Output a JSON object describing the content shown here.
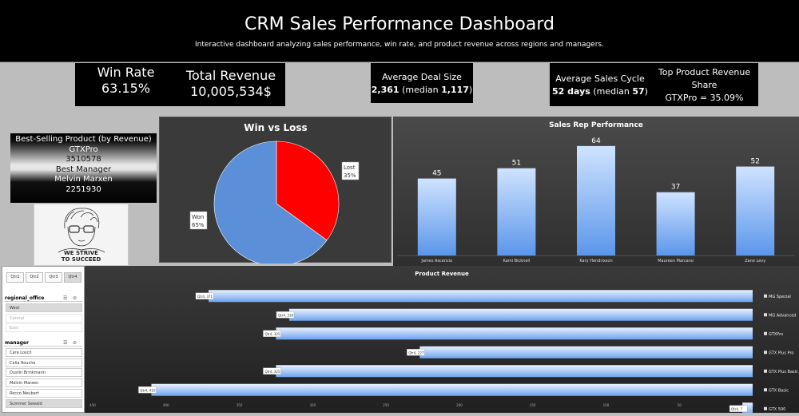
{
  "header": {
    "title": "CRM Sales Performance Dashboard",
    "subtitle": "Interactive dashboard analyzing sales performance, win rate, and product revenue across regions and managers."
  },
  "kpis": {
    "win_rate": {
      "label": "Win Rate",
      "value": "63.15%"
    },
    "total_revenue": {
      "label": "Total Revenue",
      "value": "10,005,534$"
    },
    "avg_deal": {
      "label": "Average Deal Size",
      "value": "2,361",
      "median_open": " (median ",
      "median": "1,117",
      "median_close": ")"
    },
    "avg_cycle": {
      "label": "Average Sales Cycle",
      "value": "52 days",
      "median_open": " (median ",
      "median": "57",
      "median_close": ")"
    },
    "top_product": {
      "label_line1": "Top Product Revenue",
      "label_line2": "Share",
      "value": "GTXPro = 35.09%"
    }
  },
  "info": {
    "best_product_label": "Best-Selling Product (by Revenue)",
    "best_product_name": "GTXPro",
    "best_product_value": "3510578",
    "best_manager_label": "Best Manager",
    "best_manager_name": "Melvin Marxen",
    "best_manager_value": "2251930"
  },
  "avatar": {
    "caption_line1": "WE STRIVE",
    "caption_line2": "TO SUCCEED"
  },
  "slicers": {
    "quarters": [
      "Qtr1",
      "Qtr2",
      "Qtr3",
      "Qtr4"
    ],
    "selected_quarter": "Qtr4",
    "regional_office": {
      "title": "regional_office",
      "items": [
        "West",
        "Central",
        "East"
      ],
      "selected": "West"
    },
    "manager": {
      "title": "manager",
      "items": [
        "Cara Losch",
        "Celia Rouche",
        "Dustin Brinkmann",
        "Melvin Marxen",
        "Rocco Neubert",
        "Summer Sewald"
      ],
      "selected": "Summer Sewald"
    }
  },
  "colors": {
    "pie_won": "#5b8fd8",
    "pie_lost": "#ff0000",
    "bar_light": "#cfe3ff",
    "bar_dark": "#4f8fe8"
  },
  "chart_data": [
    {
      "type": "pie",
      "title": "Win vs Loss",
      "categories": [
        "Won",
        "Lost"
      ],
      "values": [
        65,
        35
      ],
      "data_labels": [
        "Won\n65%",
        "Lost\n35%"
      ]
    },
    {
      "type": "bar",
      "title": "Sales Rep Performance",
      "categories": [
        "James Ascencio",
        "Kami Bicknell",
        "Kary Hendrixson",
        "Maureen Marcano",
        "Zane Levy"
      ],
      "values": [
        45,
        51,
        64,
        37,
        52
      ],
      "ylim": [
        0,
        70
      ]
    },
    {
      "type": "bar",
      "orientation": "horizontal",
      "title": "Product Revenue",
      "categories": [
        "MG Special",
        "MG Advanced",
        "GTXPro",
        "GTX Plus Pro",
        "GTX Plus Basic",
        "GTX Basic",
        "GTX 500"
      ],
      "series": [
        {
          "name": "Qtr4",
          "values": [
            371,
            316,
            325,
            227,
            325,
            410,
            7
          ]
        }
      ],
      "data_labels": [
        "Qtr4, 371",
        "Qtr4, 316",
        "Qtr4, 325",
        "Qtr4, 227",
        "Qtr4, 325",
        "Qtr4, 410",
        "Qtr4, 7"
      ],
      "x_ticks": [
        "450",
        "400",
        "350",
        "300",
        "250",
        "200",
        "150",
        "100",
        "50",
        "0"
      ],
      "xlim": [
        0,
        450
      ],
      "x_reversed": true
    }
  ]
}
